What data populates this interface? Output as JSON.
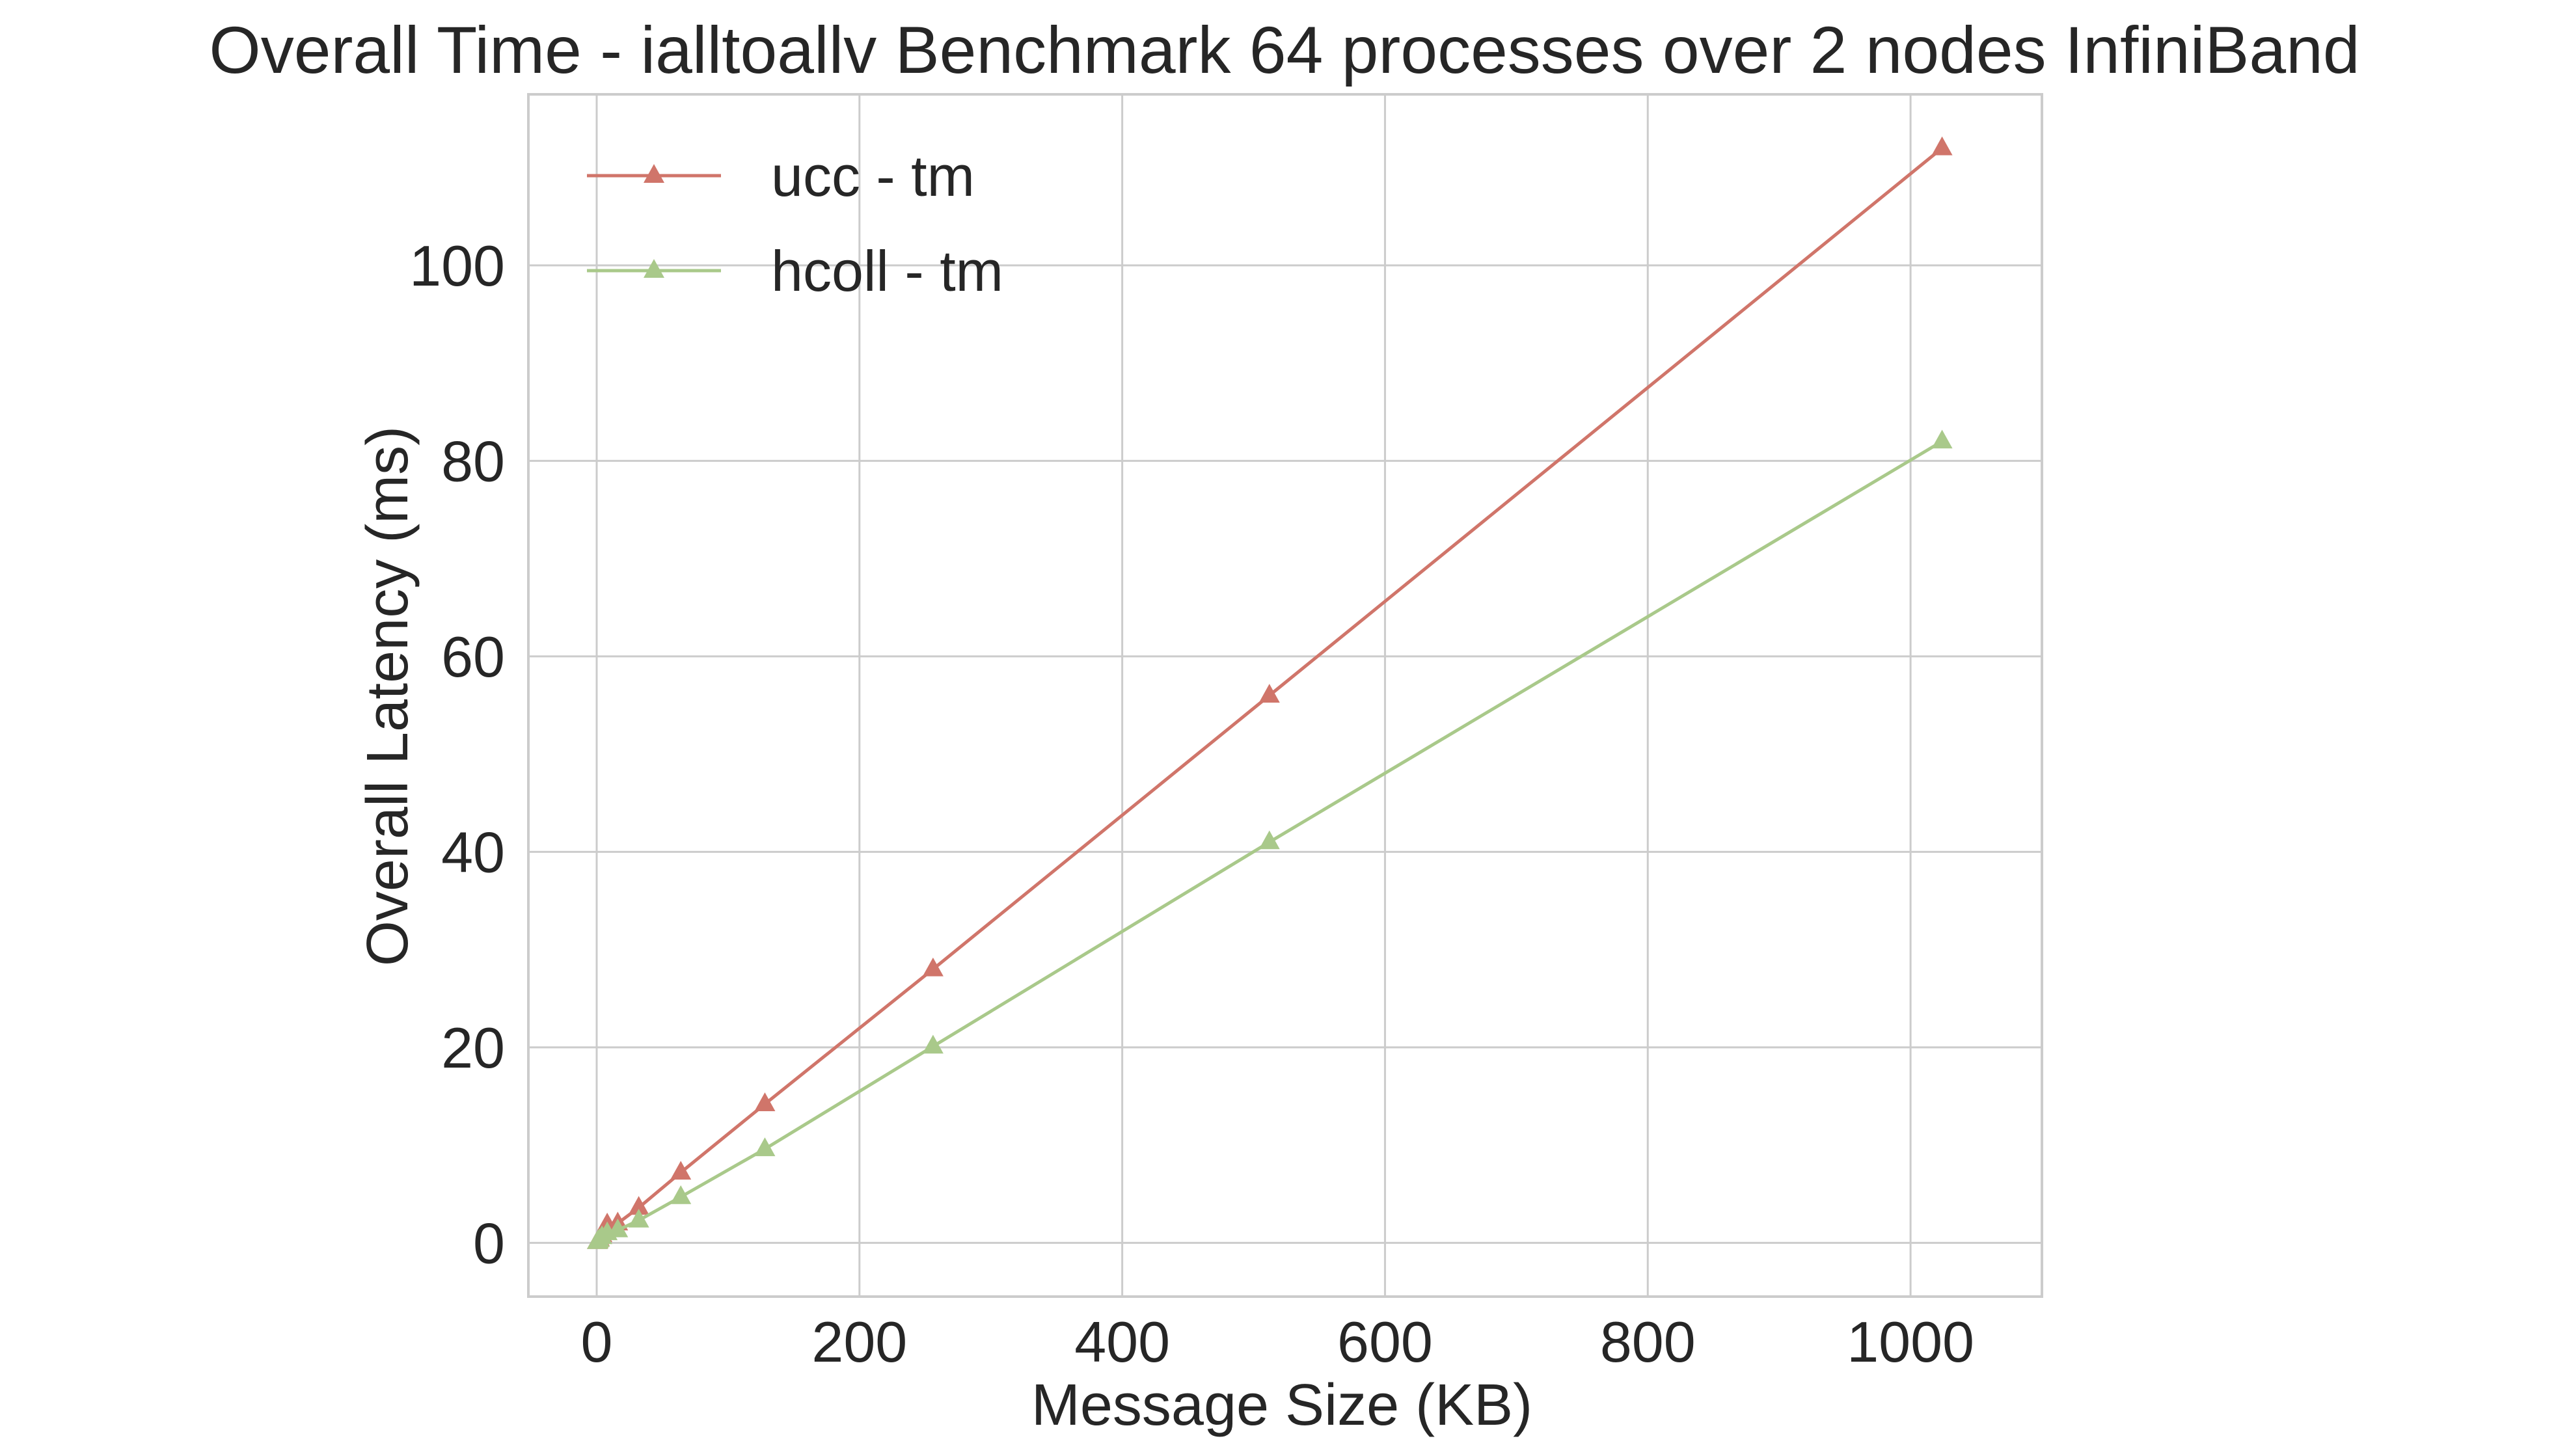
{
  "chart_data": {
    "type": "line",
    "title": "Overall Time - ialltoallv Benchmark 64 processes over 2 nodes InfiniBand",
    "xlabel": "Message Size (KB)",
    "ylabel": "Overall Latency (ms)",
    "xlim": [
      -52,
      1100
    ],
    "ylim": [
      -5.5,
      117.5
    ],
    "xticks": [
      0,
      200,
      400,
      600,
      800,
      1000
    ],
    "yticks": [
      0,
      20,
      40,
      60,
      80,
      100
    ],
    "grid": true,
    "legend_position": "top-left",
    "x": [
      0.5,
      1,
      2,
      4,
      8,
      16,
      32,
      64,
      128,
      256,
      512,
      1024,
      1048
    ],
    "series": [
      {
        "name": "ucc - tm",
        "color": "#d0756a",
        "marker": "triangle",
        "x": [
          0.5,
          1,
          2,
          4,
          8,
          16,
          32,
          64,
          128,
          256,
          512,
          1024
        ],
        "values": [
          0.1,
          0.2,
          0.4,
          0.8,
          1.9,
          2.0,
          3.6,
          7.2,
          14.2,
          28.0,
          56.0,
          112.0
        ]
      },
      {
        "name": "hcoll - tm",
        "color": "#a9c98a",
        "marker": "triangle",
        "x": [
          0.5,
          1,
          2,
          4,
          8,
          16,
          32,
          64,
          128,
          256,
          512,
          1024
        ],
        "values": [
          0.1,
          0.15,
          0.3,
          0.6,
          1.0,
          1.3,
          2.3,
          4.7,
          9.6,
          20.1,
          41.0,
          82.0
        ]
      }
    ]
  }
}
